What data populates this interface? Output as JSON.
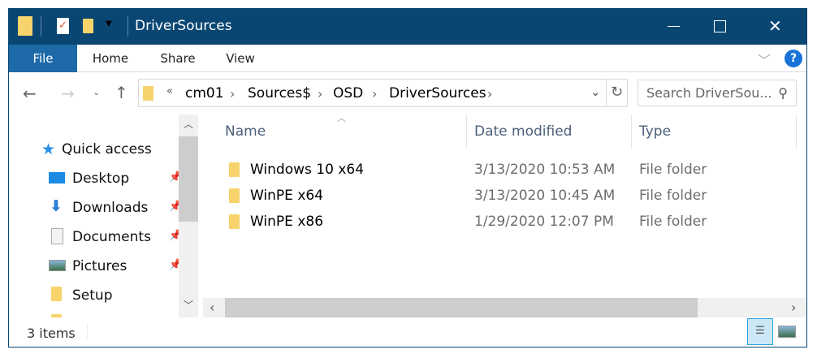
{
  "window": {
    "title": "DriverSources",
    "accent": "#0a4672"
  },
  "ribbon": {
    "tabs": [
      "File",
      "Home",
      "Share",
      "View"
    ],
    "help": "?"
  },
  "address": {
    "overflow": "«",
    "crumbs": [
      "cm01",
      "Sources$",
      "OSD",
      "DriverSources"
    ]
  },
  "search": {
    "placeholder": "Search DriverSou..."
  },
  "nav": {
    "quick_access": "Quick access",
    "items": [
      {
        "label": "Desktop",
        "icon": "desktop-icon",
        "pinned": true
      },
      {
        "label": "Downloads",
        "icon": "download-arrow-icon",
        "pinned": true
      },
      {
        "label": "Documents",
        "icon": "document-icon",
        "pinned": true
      },
      {
        "label": "Pictures",
        "icon": "pictures-icon",
        "pinned": true
      },
      {
        "label": "Setup",
        "icon": "folder-icon",
        "pinned": false
      }
    ]
  },
  "columns": [
    "Name",
    "Date modified",
    "Type"
  ],
  "files": [
    {
      "name": "Windows 10 x64",
      "date": "3/13/2020 10:53 AM",
      "type": "File folder"
    },
    {
      "name": "WinPE x64",
      "date": "3/13/2020 10:45 AM",
      "type": "File folder"
    },
    {
      "name": "WinPE x86",
      "date": "1/29/2020 12:07 PM",
      "type": "File folder"
    }
  ],
  "status": {
    "count": "3 items"
  }
}
